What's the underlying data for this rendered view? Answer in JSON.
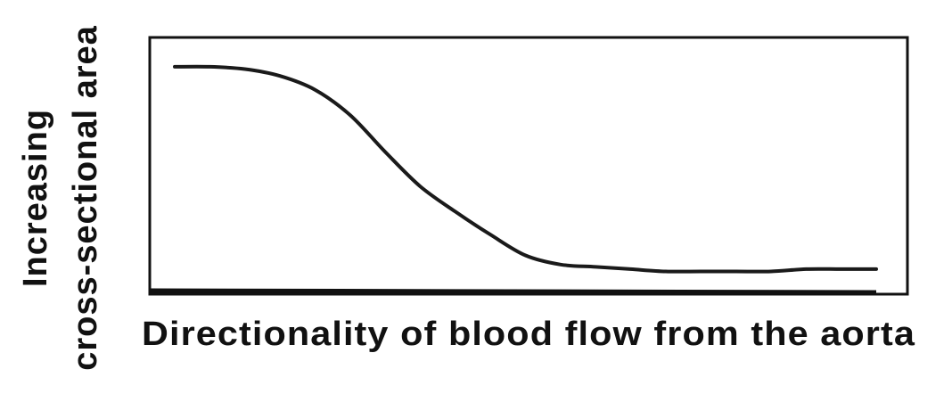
{
  "chart_data": {
    "type": "line",
    "title": "",
    "ylabel": "Increasing cross-sectional area",
    "ylabel_lines": [
      "Increasing",
      "cross-sectional area"
    ],
    "xlabel": "Directionality of blood flow from the aorta",
    "grid": false,
    "legend": "none",
    "xlim": [
      0,
      1
    ],
    "ylim": [
      0,
      1
    ],
    "series": [
      {
        "color": "#1a1a1a",
        "x": [
          0.0,
          0.05,
          0.1,
          0.15,
          0.2,
          0.25,
          0.3,
          0.35,
          0.4,
          0.45,
          0.5,
          0.55,
          0.6,
          0.65,
          0.7,
          0.75,
          0.8,
          0.85,
          0.9,
          0.95,
          1.0
        ],
        "y": [
          0.95,
          0.95,
          0.94,
          0.91,
          0.85,
          0.74,
          0.58,
          0.43,
          0.32,
          0.22,
          0.13,
          0.09,
          0.08,
          0.07,
          0.06,
          0.06,
          0.06,
          0.06,
          0.07,
          0.07,
          0.07
        ]
      }
    ],
    "colors": {
      "frame": "#111111",
      "text": "#111111",
      "background": "#ffffff"
    }
  }
}
